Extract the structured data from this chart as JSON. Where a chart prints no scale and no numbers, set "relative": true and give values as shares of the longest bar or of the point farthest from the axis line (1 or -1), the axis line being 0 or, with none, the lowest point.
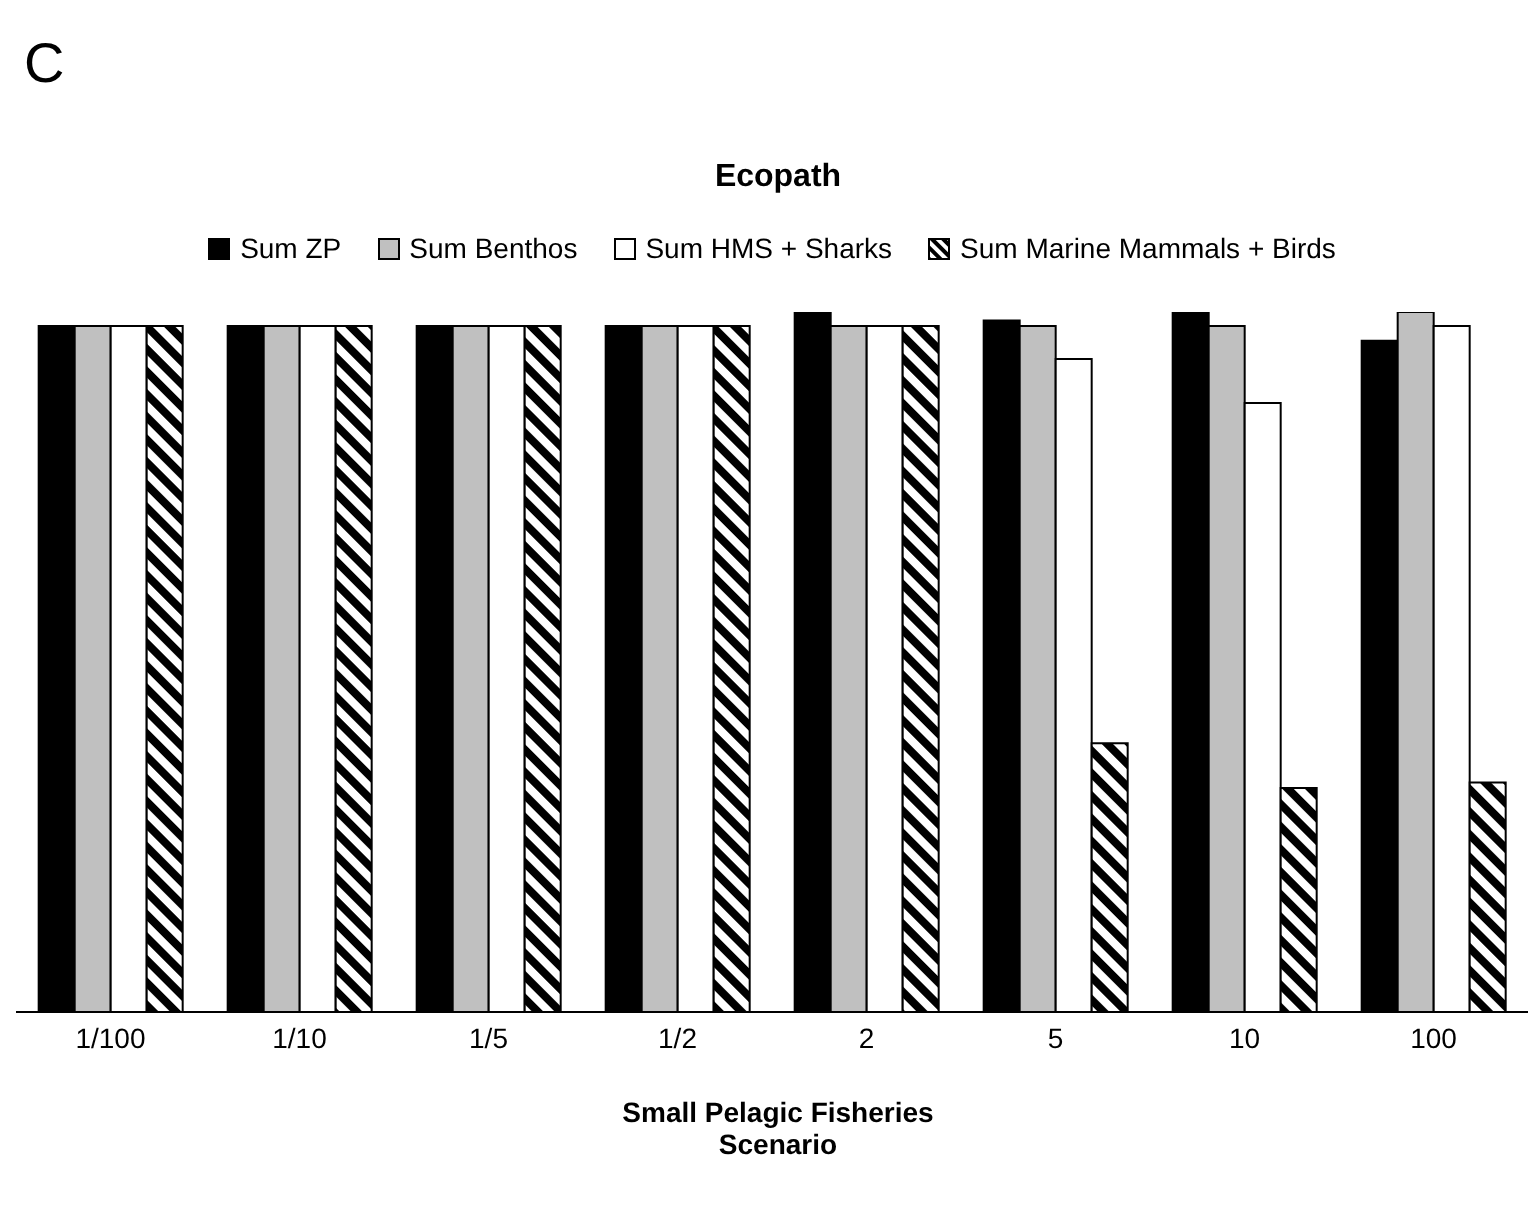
{
  "chart_data": {
    "type": "bar",
    "title": "Ecopath",
    "xlabel": "Small Pelagic Fisheries Scenario",
    "annotations": [
      "C"
    ],
    "relative": true,
    "legend": "top",
    "grid": false,
    "categories": [
      "1/100",
      "1/10",
      "1/5",
      "1/2",
      "2",
      "5",
      "10",
      "100"
    ],
    "series": [
      {
        "name": "Sum ZP",
        "color": "#000000",
        "values": [
          0.98,
          0.98,
          0.98,
          0.98,
          1,
          0.988,
          1,
          0.959
        ]
      },
      {
        "name": "Sum Benthos",
        "color": "#c0c0c0",
        "values": [
          0.98,
          0.98,
          0.98,
          0.98,
          0.98,
          0.98,
          0.98,
          1
        ]
      },
      {
        "name": "Sum HMS + Sharks",
        "color": "#ffffff",
        "values": [
          0.98,
          0.98,
          0.98,
          0.98,
          0.98,
          0.933,
          0.87,
          0.98
        ]
      },
      {
        "name": "Sum Marine Mammals + Birds",
        "color": "#000000",
        "values": [
          0.98,
          0.98,
          0.98,
          0.98,
          0.98,
          0.384,
          0.32,
          0.328
        ]
      }
    ]
  }
}
